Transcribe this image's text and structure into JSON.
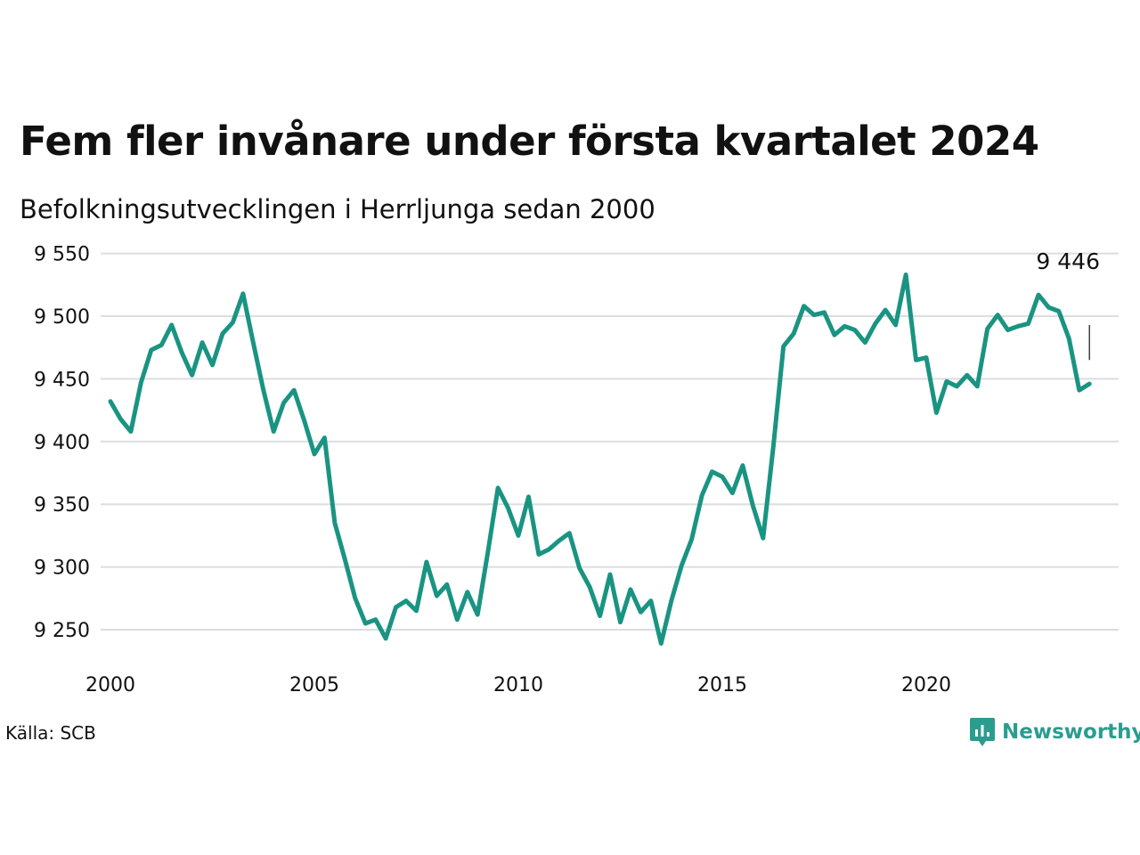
{
  "header": {
    "title": "Fem fler invånare under första kvartalet 2024",
    "subtitle": "Befolkningsutvecklingen i Herrljunga sedan 2000"
  },
  "footer": {
    "source": "Källa: SCB",
    "brand": "Newsworthy",
    "brand_icon": "newsworthy-logo-icon"
  },
  "colors": {
    "line": "#1a9482",
    "grid": "#dcdde0",
    "brand": "#2a9d8f",
    "text": "#111111"
  },
  "chart_data": {
    "type": "line",
    "title": "Fem fler invånare under första kvartalet 2024",
    "subtitle": "Befolkningsutvecklingen i Herrljunga sedan 2000",
    "xlabel": "",
    "ylabel": "",
    "ylim": [
      9230,
      9555
    ],
    "xlim": [
      2000,
      2024.5
    ],
    "yticks": [
      9250,
      9300,
      9350,
      9400,
      9450,
      9500,
      9550
    ],
    "ytick_labels": [
      "9 250",
      "9 300",
      "9 350",
      "9 400",
      "9 450",
      "9 500",
      "9 550"
    ],
    "xticks": [
      2000,
      2005,
      2010,
      2015,
      2020
    ],
    "xtick_labels": [
      "2000",
      "2005",
      "2010",
      "2015",
      "2020"
    ],
    "grid": "horizontal",
    "annotation": {
      "text": "9 446",
      "x": 2024.0,
      "y": 9446
    },
    "series": [
      {
        "x": [
          2000.0,
          2000.25,
          2000.5,
          2000.75,
          2001.0,
          2001.25,
          2001.5,
          2001.75,
          2002.0,
          2002.25,
          2002.5,
          2002.75,
          2003.0,
          2003.25,
          2003.5,
          2003.75,
          2004.0,
          2004.25,
          2004.5,
          2004.75,
          2005.0,
          2005.25,
          2005.5,
          2005.75,
          2006.0,
          2006.25,
          2006.5,
          2006.75,
          2007.0,
          2007.25,
          2007.5,
          2007.75,
          2008.0,
          2008.25,
          2008.5,
          2008.75,
          2009.0,
          2009.25,
          2009.5,
          2009.75,
          2010.0,
          2010.25,
          2010.5,
          2010.75,
          2011.0,
          2011.25,
          2011.5,
          2011.75,
          2012.0,
          2012.25,
          2012.5,
          2012.75,
          2013.0,
          2013.25,
          2013.5,
          2013.75,
          2014.0,
          2014.25,
          2014.5,
          2014.75,
          2015.0,
          2015.25,
          2015.5,
          2015.75,
          2016.0,
          2016.25,
          2016.5,
          2016.75,
          2017.0,
          2017.25,
          2017.5,
          2017.75,
          2018.0,
          2018.25,
          2018.5,
          2018.75,
          2019.0,
          2019.25,
          2019.5,
          2019.75,
          2020.0,
          2020.25,
          2020.5,
          2020.75,
          2021.0,
          2021.25,
          2021.5,
          2021.75,
          2022.0,
          2022.25,
          2022.5,
          2022.75,
          2023.0,
          2023.25,
          2023.5,
          2023.75,
          2024.0
        ],
        "values": [
          9432,
          9418,
          9408,
          9447,
          9473,
          9477,
          9493,
          9471,
          9453,
          9479,
          9461,
          9486,
          9495,
          9518,
          9479,
          9441,
          9408,
          9431,
          9441,
          9417,
          9390,
          9403,
          9335,
          9306,
          9275,
          9255,
          9258,
          9243,
          9268,
          9273,
          9265,
          9304,
          9277,
          9286,
          9258,
          9280,
          9262,
          9311,
          9363,
          9347,
          9325,
          9356,
          9310,
          9314,
          9321,
          9327,
          9299,
          9284,
          9261,
          9294,
          9256,
          9282,
          9264,
          9273,
          9239,
          9273,
          9301,
          9322,
          9357,
          9376,
          9372,
          9359,
          9381,
          9349,
          9323,
          9396,
          9476,
          9486,
          9508,
          9501,
          9503,
          9485,
          9492,
          9489,
          9479,
          9494,
          9505,
          9493,
          9533,
          9465,
          9467,
          9423,
          9448,
          9444,
          9453,
          9444,
          9490,
          9501,
          9489,
          9492,
          9494,
          9517,
          9507,
          9504,
          9482,
          9441,
          9446
        ]
      }
    ]
  }
}
